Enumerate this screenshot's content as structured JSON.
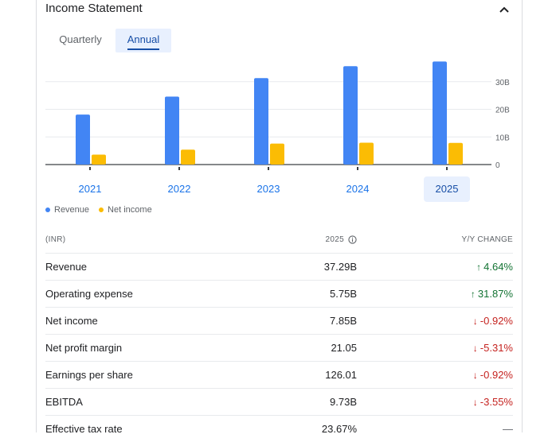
{
  "section_title": "Income Statement",
  "tabs": [
    {
      "label": "Quarterly",
      "selected": false
    },
    {
      "label": "Annual",
      "selected": true
    }
  ],
  "colors": {
    "revenue": "#4285f4",
    "net_income": "#fbbc04",
    "accent": "#1a73e8",
    "up": "#137333",
    "down": "#c5221f"
  },
  "chart_data": {
    "type": "bar",
    "categories": [
      "2021",
      "2022",
      "2023",
      "2024",
      "2025"
    ],
    "series": [
      {
        "name": "Revenue",
        "values": [
          18.1,
          24.6,
          31.3,
          35.6,
          37.29
        ]
      },
      {
        "name": "Net income",
        "values": [
          3.6,
          5.4,
          7.6,
          7.9,
          7.85
        ]
      }
    ],
    "y_ticks": [
      "0",
      "10B",
      "20B",
      "30B"
    ],
    "y_tick_values": [
      0,
      10,
      20,
      30
    ],
    "ylim": [
      0,
      40
    ],
    "grid": true,
    "y_axis_side": "right",
    "legend": "bottom-left",
    "selected_category": "2025"
  },
  "table": {
    "col_label": "(INR)",
    "col_year": "2025",
    "col_change": "Y/Y CHANGE",
    "rows": [
      {
        "label": "Revenue",
        "value": "37.29B",
        "change": "4.64%",
        "dir": "up"
      },
      {
        "label": "Operating expense",
        "value": "5.75B",
        "change": "31.87%",
        "dir": "up"
      },
      {
        "label": "Net income",
        "value": "7.85B",
        "change": "-0.92%",
        "dir": "down"
      },
      {
        "label": "Net profit margin",
        "value": "21.05",
        "change": "-5.31%",
        "dir": "down"
      },
      {
        "label": "Earnings per share",
        "value": "126.01",
        "change": "-0.92%",
        "dir": "down"
      },
      {
        "label": "EBITDA",
        "value": "9.73B",
        "change": "-3.55%",
        "dir": "down"
      },
      {
        "label": "Effective tax rate",
        "value": "23.67%",
        "change": "—",
        "dir": "flat"
      }
    ]
  }
}
